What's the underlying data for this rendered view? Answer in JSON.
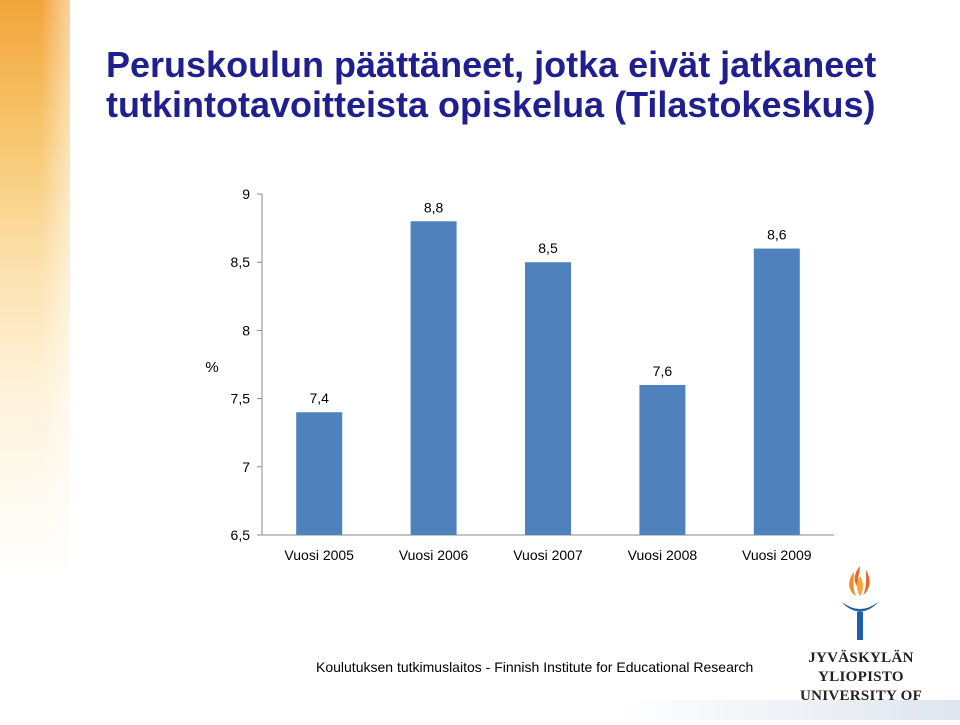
{
  "title": {
    "line1": "Peruskoulun päättäneet, jotka eivät jatkaneet",
    "line2": "tutkintotavoitteista opiskelua (Tilastokeskus)"
  },
  "chart_data": {
    "type": "bar",
    "categories": [
      "Vuosi 2005",
      "Vuosi 2006",
      "Vuosi 2007",
      "Vuosi 2008",
      "Vuosi 2009"
    ],
    "values": [
      7.4,
      8.8,
      8.5,
      7.6,
      8.6
    ],
    "value_labels": [
      "7,4",
      "8,8",
      "8,5",
      "7,6",
      "8,6"
    ],
    "ylabel": "%",
    "ylim": [
      6.5,
      9
    ],
    "yticks": [
      9,
      8.5,
      8,
      7.5,
      7,
      6.5
    ],
    "ytick_labels": [
      "9",
      "8,5",
      "8",
      "7,5",
      "7",
      "6,5"
    ],
    "bar_color": "#4f81bd",
    "grid": false
  },
  "footer": {
    "text": "Koulutuksen tutkimuslaitos - Finnish Institute for Educational Research"
  },
  "logo": {
    "line1": "JYVÄSKYLÄN YLIOPISTO",
    "line2": "UNIVERSITY OF JYVÄSKYLÄ",
    "icon": "torch-logo-icon"
  }
}
